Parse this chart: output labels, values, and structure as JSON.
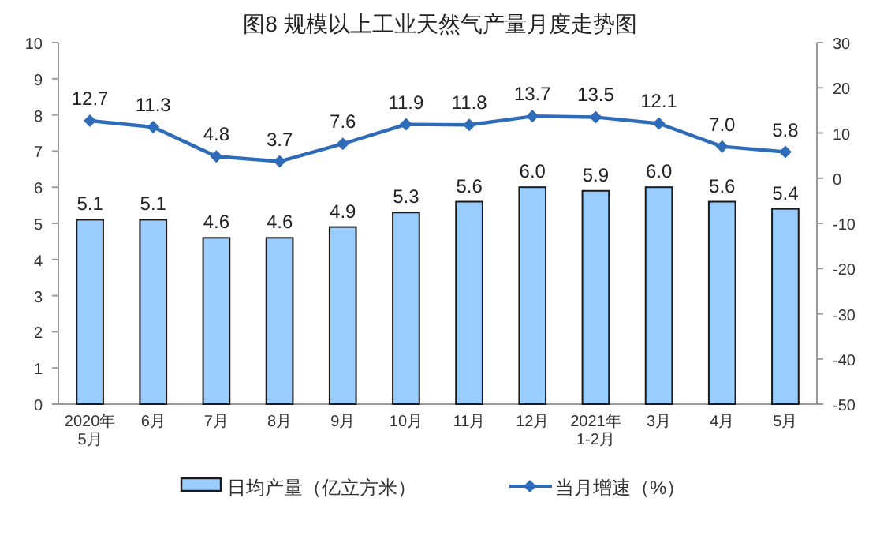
{
  "chart_data": {
    "type": "bar",
    "title": "图8  规模以上工业天然气产量月度走势图",
    "categories": [
      "2020年\n5月",
      "6月",
      "7月",
      "8月",
      "9月",
      "10月",
      "11月",
      "12月",
      "2021年\n1-2月",
      "3月",
      "4月",
      "5月"
    ],
    "series": [
      {
        "name": "日均产量（亿立方米）",
        "color": "#99ccff",
        "values": [
          5.1,
          5.1,
          4.6,
          4.6,
          4.9,
          5.3,
          5.6,
          6.0,
          5.9,
          6.0,
          5.6,
          5.4
        ],
        "value_labels": [
          "5.1",
          "5.1",
          "4.6",
          "4.6",
          "4.9",
          "5.3",
          "5.6",
          "6.0",
          "5.9",
          "6.0",
          "5.6",
          "5.4"
        ]
      },
      {
        "name": "当月增速（%）",
        "type": "line",
        "axis": "y2",
        "color": "#2e6bb8",
        "values": [
          12.7,
          11.3,
          4.8,
          3.7,
          7.6,
          11.9,
          11.8,
          13.7,
          13.5,
          12.1,
          7.0,
          5.8
        ],
        "value_labels": [
          "12.7",
          "11.3",
          "4.8",
          "3.7",
          "7.6",
          "11.9",
          "11.8",
          "13.7",
          "13.5",
          "12.1",
          "7.0",
          "5.8"
        ]
      }
    ],
    "ylim": [
      0,
      10
    ],
    "yticks": [
      0,
      1,
      2,
      3,
      4,
      5,
      6,
      7,
      8,
      9,
      10
    ],
    "y2lim": [
      -50,
      30
    ],
    "y2ticks": [
      -50,
      -40,
      -30,
      -20,
      -10,
      0,
      10,
      20,
      30
    ],
    "legend": "bottom",
    "marker": "diamond",
    "grid": false
  }
}
